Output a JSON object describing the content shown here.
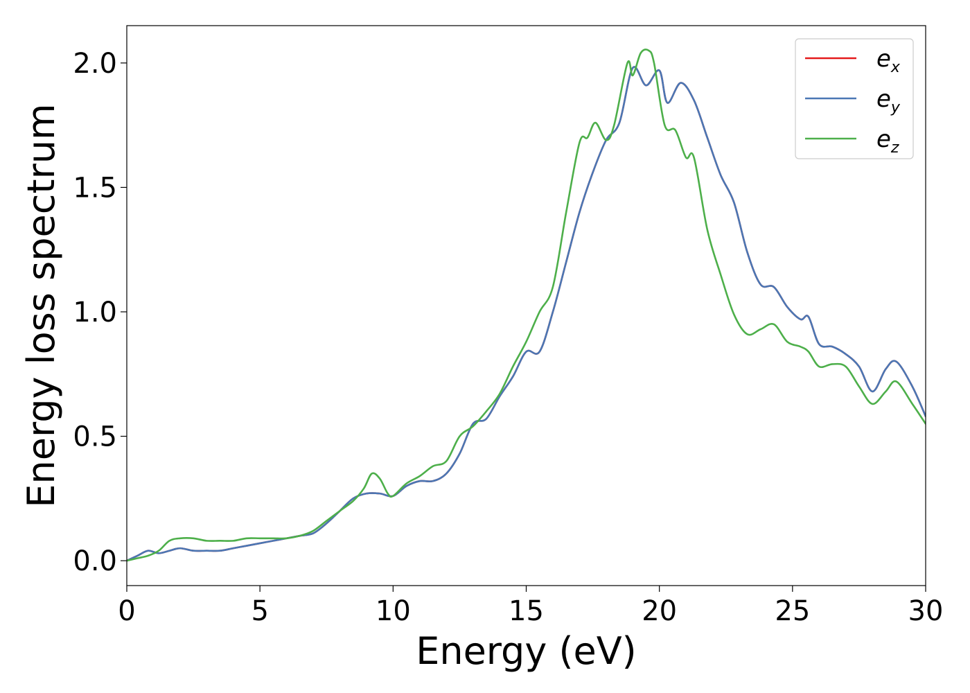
{
  "chart_data": {
    "type": "line",
    "title": "",
    "xlabel": "Energy (eV)",
    "ylabel": "Energy loss spectrum",
    "xlim": [
      0,
      30
    ],
    "ylim": [
      -0.1,
      2.15
    ],
    "x_ticks": [
      0,
      5,
      10,
      15,
      20,
      25,
      30
    ],
    "x_tick_labels": [
      "0",
      "5",
      "10",
      "15",
      "20",
      "25",
      "30"
    ],
    "y_ticks": [
      0.0,
      0.5,
      1.0,
      1.5,
      2.0
    ],
    "y_tick_labels": [
      "0.0",
      "0.5",
      "1.0",
      "1.5",
      "2.0"
    ],
    "grid": false,
    "legend_position": "top-right",
    "series": [
      {
        "name": "e_x",
        "legend_base": "e",
        "legend_sub": "x",
        "color": "#e41a1c",
        "x": [
          0,
          0.4,
          0.8,
          1.2,
          1.6,
          2.0,
          2.5,
          3.0,
          3.5,
          4.0,
          4.5,
          5.0,
          5.5,
          6.0,
          6.5,
          7.0,
          7.5,
          8.0,
          8.5,
          9.0,
          9.5,
          10.0,
          10.5,
          11.0,
          11.5,
          12.0,
          12.5,
          13.0,
          13.5,
          14.0,
          14.5,
          15.0,
          15.5,
          16.0,
          16.5,
          17.0,
          17.5,
          18.0,
          18.5,
          19.0,
          19.5,
          20.0,
          20.3,
          20.8,
          21.3,
          21.8,
          22.3,
          22.8,
          23.3,
          23.8,
          24.3,
          24.8,
          25.3,
          25.6,
          26.0,
          26.5,
          27.0,
          27.5,
          28.0,
          28.5,
          28.9,
          29.5,
          30.0
        ],
        "y": [
          0.0,
          0.02,
          0.04,
          0.03,
          0.04,
          0.05,
          0.04,
          0.04,
          0.04,
          0.05,
          0.06,
          0.07,
          0.08,
          0.09,
          0.1,
          0.11,
          0.15,
          0.2,
          0.25,
          0.27,
          0.27,
          0.26,
          0.3,
          0.32,
          0.32,
          0.35,
          0.43,
          0.55,
          0.57,
          0.66,
          0.74,
          0.84,
          0.84,
          1.0,
          1.2,
          1.4,
          1.56,
          1.69,
          1.76,
          1.98,
          1.91,
          1.97,
          1.84,
          1.92,
          1.85,
          1.7,
          1.55,
          1.44,
          1.24,
          1.11,
          1.1,
          1.02,
          0.97,
          0.98,
          0.87,
          0.86,
          0.83,
          0.78,
          0.68,
          0.77,
          0.8,
          0.7,
          0.58
        ]
      },
      {
        "name": "e_y",
        "legend_base": "e",
        "legend_sub": "y",
        "color": "#4a77b4",
        "x": [
          0,
          0.4,
          0.8,
          1.2,
          1.6,
          2.0,
          2.5,
          3.0,
          3.5,
          4.0,
          4.5,
          5.0,
          5.5,
          6.0,
          6.5,
          7.0,
          7.5,
          8.0,
          8.5,
          9.0,
          9.5,
          10.0,
          10.5,
          11.0,
          11.5,
          12.0,
          12.5,
          13.0,
          13.5,
          14.0,
          14.5,
          15.0,
          15.5,
          16.0,
          16.5,
          17.0,
          17.5,
          18.0,
          18.5,
          19.0,
          19.5,
          20.0,
          20.3,
          20.8,
          21.3,
          21.8,
          22.3,
          22.8,
          23.3,
          23.8,
          24.3,
          24.8,
          25.3,
          25.6,
          26.0,
          26.5,
          27.0,
          27.5,
          28.0,
          28.5,
          28.9,
          29.5,
          30.0
        ],
        "y": [
          0.0,
          0.02,
          0.04,
          0.03,
          0.04,
          0.05,
          0.04,
          0.04,
          0.04,
          0.05,
          0.06,
          0.07,
          0.08,
          0.09,
          0.1,
          0.11,
          0.15,
          0.2,
          0.25,
          0.27,
          0.27,
          0.26,
          0.3,
          0.32,
          0.32,
          0.35,
          0.43,
          0.55,
          0.57,
          0.66,
          0.74,
          0.84,
          0.84,
          1.0,
          1.2,
          1.4,
          1.56,
          1.69,
          1.76,
          1.98,
          1.91,
          1.97,
          1.84,
          1.92,
          1.85,
          1.7,
          1.55,
          1.44,
          1.24,
          1.11,
          1.1,
          1.02,
          0.97,
          0.98,
          0.87,
          0.86,
          0.83,
          0.78,
          0.68,
          0.77,
          0.8,
          0.7,
          0.58
        ]
      },
      {
        "name": "e_z",
        "legend_base": "e",
        "legend_sub": "z",
        "color": "#4daf4a",
        "x": [
          0,
          0.4,
          0.8,
          1.2,
          1.6,
          2.0,
          2.5,
          3.0,
          3.5,
          4.0,
          4.5,
          5.0,
          5.5,
          6.0,
          6.5,
          7.0,
          7.5,
          8.0,
          8.5,
          8.9,
          9.2,
          9.5,
          9.8,
          10.0,
          10.5,
          11.0,
          11.5,
          12.0,
          12.5,
          13.0,
          13.5,
          14.0,
          14.5,
          15.0,
          15.5,
          16.0,
          16.5,
          17.0,
          17.3,
          17.6,
          18.0,
          18.3,
          18.8,
          19.0,
          19.3,
          19.6,
          19.8,
          20.2,
          20.6,
          21.0,
          21.3,
          21.8,
          22.3,
          22.8,
          23.3,
          23.8,
          24.3,
          24.8,
          25.3,
          25.6,
          26.0,
          26.5,
          27.0,
          27.5,
          28.0,
          28.5,
          28.9,
          29.5,
          30.0
        ],
        "y": [
          0.0,
          0.01,
          0.02,
          0.04,
          0.08,
          0.09,
          0.09,
          0.08,
          0.08,
          0.08,
          0.09,
          0.09,
          0.09,
          0.09,
          0.1,
          0.12,
          0.16,
          0.2,
          0.24,
          0.29,
          0.35,
          0.33,
          0.27,
          0.26,
          0.31,
          0.34,
          0.38,
          0.4,
          0.5,
          0.54,
          0.6,
          0.67,
          0.78,
          0.88,
          1.0,
          1.1,
          1.4,
          1.68,
          1.7,
          1.76,
          1.69,
          1.75,
          2.0,
          1.95,
          2.04,
          2.05,
          2.0,
          1.75,
          1.73,
          1.62,
          1.62,
          1.33,
          1.15,
          0.99,
          0.91,
          0.93,
          0.95,
          0.88,
          0.86,
          0.84,
          0.78,
          0.79,
          0.78,
          0.7,
          0.63,
          0.68,
          0.72,
          0.63,
          0.55
        ]
      }
    ]
  }
}
